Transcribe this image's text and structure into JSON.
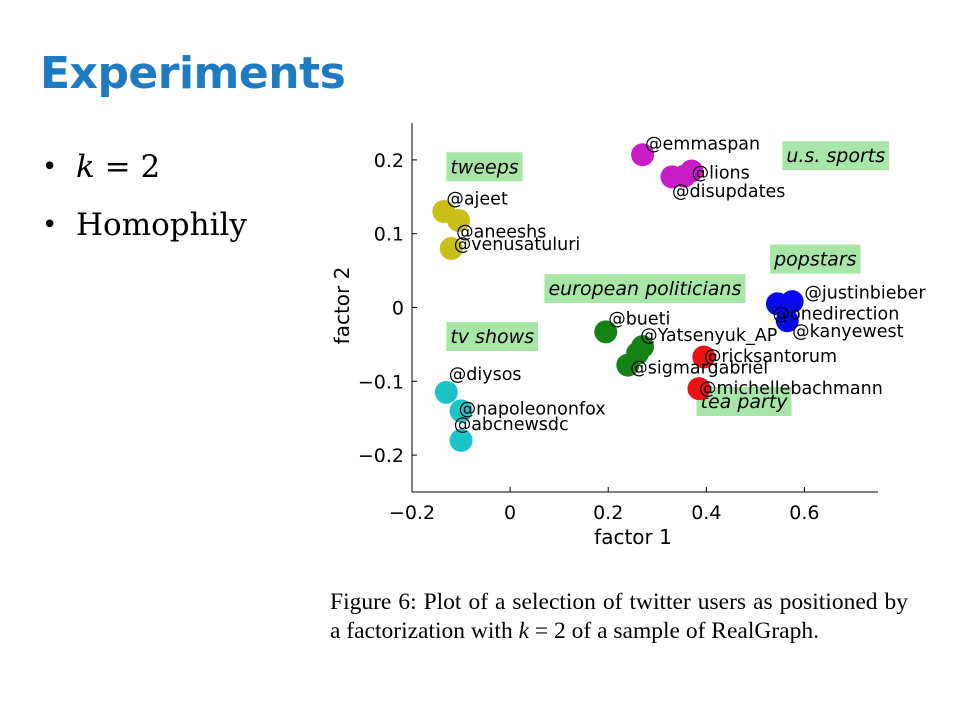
{
  "slide": {
    "title": "Experiments",
    "bullets": [
      {
        "prefix": "",
        "math_k": "k",
        "rest": " = 2"
      },
      {
        "prefix": "Homophily",
        "math_k": "",
        "rest": ""
      }
    ]
  },
  "caption": {
    "before": "Figure 6: Plot of a selection of twitter users as positioned by a factorization with ",
    "k": "k",
    "eq": " = 2",
    "after": " of a sample of RealGraph."
  },
  "chart_data": {
    "type": "scatter",
    "xlabel": "factor 1",
    "ylabel": "factor 2",
    "xlim": [
      -0.2,
      0.75
    ],
    "ylim": [
      -0.25,
      0.25
    ],
    "xticks": [
      -0.2,
      0,
      0.2,
      0.4,
      0.6
    ],
    "xtick_labels": [
      "−0.2",
      "0",
      "0.2",
      "0.4",
      "0.6"
    ],
    "yticks": [
      0.2,
      0.1,
      0,
      -0.1,
      -0.2
    ],
    "ytick_labels": [
      "0.2",
      "0.1",
      "0",
      "−0.1",
      "−0.2"
    ],
    "groups": [
      {
        "label": "tweeps",
        "color": "#C8BF17",
        "label_pos": [
          -0.13,
          0.19
        ],
        "points": [
          {
            "x": -0.135,
            "y": 0.13,
            "label": "@ajeet",
            "lx": -0.13,
            "ly": 0.148
          },
          {
            "x": -0.105,
            "y": 0.118,
            "label": "@aneeshs",
            "lx": -0.11,
            "ly": 0.103
          },
          {
            "x": -0.12,
            "y": 0.08,
            "label": "@venusatuluri",
            "lx": -0.115,
            "ly": 0.086
          }
        ]
      },
      {
        "label": "u.s. sports",
        "color": "#C71CC7",
        "label_pos": [
          0.555,
          0.205
        ],
        "points": [
          {
            "x": 0.27,
            "y": 0.207,
            "label": "@emmaspan",
            "lx": 0.275,
            "ly": 0.222
          },
          {
            "x": 0.37,
            "y": 0.185,
            "label": "@lions",
            "lx": 0.37,
            "ly": 0.183
          },
          {
            "x": 0.33,
            "y": 0.177,
            "label": "@disupdates",
            "lx": 0.33,
            "ly": 0.158
          },
          {
            "x": 0.355,
            "y": 0.178,
            "label": "",
            "lx": 0,
            "ly": 0
          }
        ]
      },
      {
        "label": "popstars",
        "color": "#0808EE",
        "label_pos": [
          0.53,
          0.065
        ],
        "points": [
          {
            "x": 0.545,
            "y": 0.005,
            "label": "@justinbieber",
            "lx": 0.6,
            "ly": 0.02
          },
          {
            "x": 0.575,
            "y": 0.008,
            "label": "@onedirection",
            "lx": 0.535,
            "ly": -0.008
          },
          {
            "x": 0.565,
            "y": -0.018,
            "label": "@kanyewest",
            "lx": 0.575,
            "ly": -0.032
          }
        ]
      },
      {
        "label": "european politicians",
        "color": "#148214",
        "label_pos": [
          0.07,
          0.025
        ],
        "points": [
          {
            "x": 0.195,
            "y": -0.033,
            "label": "@bueti",
            "lx": 0.2,
            "ly": -0.015
          },
          {
            "x": 0.27,
            "y": -0.053,
            "label": "@Yatsenyuk_AP",
            "lx": 0.265,
            "ly": -0.037
          },
          {
            "x": 0.24,
            "y": -0.078,
            "label": "@sigmargabriel",
            "lx": 0.245,
            "ly": -0.081
          },
          {
            "x": 0.26,
            "y": -0.062,
            "label": "",
            "lx": 0,
            "ly": 0
          }
        ]
      },
      {
        "label": "tea party",
        "color": "#EE1111",
        "label_pos": [
          0.38,
          -0.128
        ],
        "points": [
          {
            "x": 0.395,
            "y": -0.067,
            "label": "@ricksantorum",
            "lx": 0.395,
            "ly": -0.066
          },
          {
            "x": 0.385,
            "y": -0.11,
            "label": "@michellebachmann",
            "lx": 0.385,
            "ly": -0.109
          }
        ]
      },
      {
        "label": "tv shows",
        "color": "#1DC4C4",
        "label_pos": [
          -0.13,
          -0.04
        ],
        "points": [
          {
            "x": -0.13,
            "y": -0.115,
            "label": "@diysos",
            "lx": -0.125,
            "ly": -0.09
          },
          {
            "x": -0.1,
            "y": -0.14,
            "label": "@napoleononfox",
            "lx": -0.105,
            "ly": -0.137
          },
          {
            "x": -0.1,
            "y": -0.18,
            "label": "@abcnewsdc",
            "lx": -0.115,
            "ly": -0.158
          }
        ]
      }
    ]
  }
}
